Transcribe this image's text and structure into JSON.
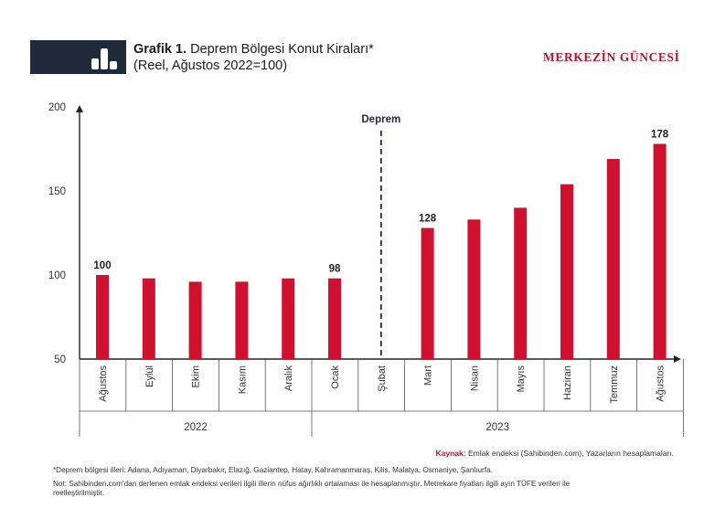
{
  "header": {
    "title_bold": "Grafik 1.",
    "title_rest": "Deprem Bölgesi Konut Kiraları*",
    "subtitle": "(Reel, Ağustos 2022=100)",
    "brand": "MERKEZİN GÜNCESİ",
    "icon": "bar-chart-icon"
  },
  "chart_data": {
    "type": "bar",
    "categories": [
      "Ağustos",
      "Eylül",
      "Ekim",
      "Kasım",
      "Aralık",
      "Ocak",
      "Şubat",
      "Mart",
      "Nisan",
      "Mayıs",
      "Haziran",
      "Temmuz",
      "Ağustos"
    ],
    "values": [
      100,
      98,
      96,
      96,
      98,
      98,
      null,
      128,
      133,
      140,
      154,
      169,
      178
    ],
    "data_labels": [
      "100",
      "",
      "",
      "",
      "",
      "98",
      "",
      "128",
      "",
      "",
      "",
      "",
      "178"
    ],
    "year_groups": [
      {
        "label": "2022",
        "start": 0,
        "end": 4
      },
      {
        "label": "2023",
        "start": 5,
        "end": 12
      }
    ],
    "yticks": [
      "200",
      "150",
      "100",
      "50"
    ],
    "ylim": [
      50,
      200
    ],
    "annotation": {
      "label": "Deprem",
      "category_index": 6
    },
    "bar_color": "#d0102f",
    "grid": false
  },
  "footer": {
    "source_label": "Kaynak:",
    "source_text": "Emlak endeksi (Sahibinden.com), Yazarların hesaplamaları.",
    "note1": "*Deprem bölgesi illeri: Adana, Adıyaman, Diyarbakır, Elazığ, Gaziantep, Hatay, Kahramanmaraş, Kilis, Malatya, Osmaniye, Şanlıurfa.",
    "note2": "Not: Sahibinden.com'dan derlenen emlak endeksi verileri ilgili illerin nüfus ağırlıklı ortalaması ile hesaplanmıştır. Metrekare fiyatları ilgili ayın TÜFE verileri ile",
    "note3": "reelleştirilmiştir."
  }
}
